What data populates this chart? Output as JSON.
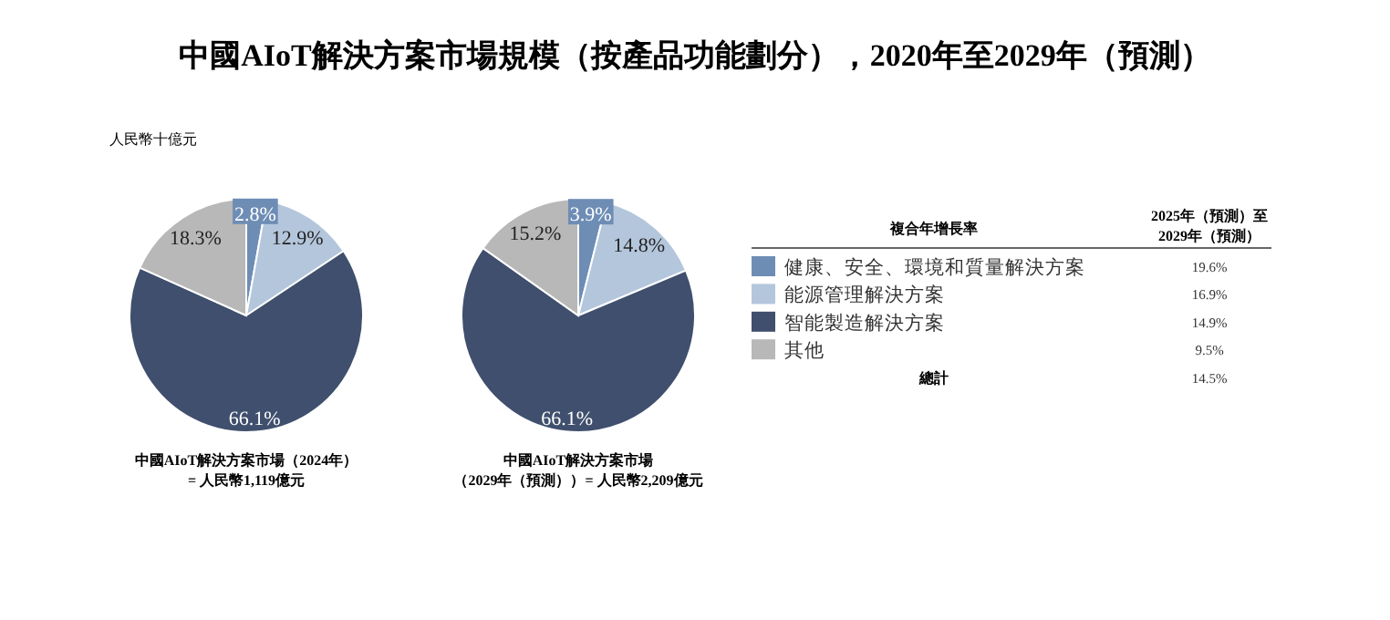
{
  "chart_data": [
    {
      "type": "pie",
      "title": "中國AIoT解決方案市場規模（按產品功能劃分），2020年至2029年（預測）",
      "subtitle": "人民幣十億元",
      "xlabel": "中國AIoT解決方案市場（2024年）\n= 人民幣1,119億元",
      "categories": [
        null,
        null,
        null,
        null
      ],
      "values": [
        2.8,
        12.9,
        66.1,
        18.3
      ],
      "colors": [
        "#6e8db5",
        "#b4c6dc",
        "#3f4f6d",
        "#b8b8b8"
      ],
      "value_labels": [
        "2.8%",
        "12.9%",
        "66.1%",
        "18.3%"
      ]
    },
    {
      "type": "pie",
      "xlabel": "中國AIoT解決方案市場（2029年（預測））= 人民幣2,209億元",
      "categories": [
        null,
        null,
        null,
        null
      ],
      "values": [
        3.9,
        14.8,
        66.1,
        15.2
      ],
      "colors": [
        "#6e8db5",
        "#b4c6dc",
        "#3f4f6d",
        "#b8b8b8"
      ],
      "value_labels": [
        "3.9%",
        "14.8%",
        "66.1%",
        "15.2%"
      ]
    },
    {
      "type": "other",
      "categories": [
        "健康、安全、環境和質量解決方案",
        "能源管理解決方案",
        "智能製造解決方案",
        "其他"
      ],
      "colors": [
        "#6e8db5",
        "#b4c6dc",
        "#3f4f6d",
        "#b8b8b8"
      ],
      "value_labels": [
        "19.6%",
        "16.9%",
        "14.9%",
        "9.5%"
      ],
      "annotations": [
        "複合年增長率",
        "2025年（預測）至\n2029年（預測）",
        "總計",
        "14.5%"
      ]
    }
  ]
}
